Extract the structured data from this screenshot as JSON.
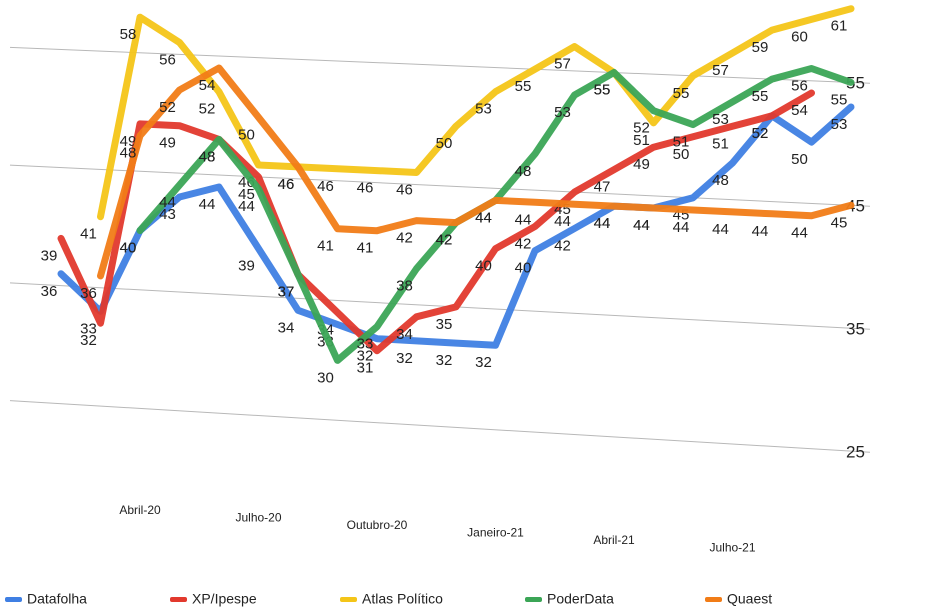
{
  "chart_data": {
    "type": "line",
    "categories": [
      null,
      null,
      "Abril-20",
      null,
      null,
      "Julho-20",
      null,
      null,
      "Outubro-20",
      null,
      null,
      "Janeiro-21",
      null,
      null,
      "Abril-21",
      null,
      null,
      "Julho-21",
      null,
      null,
      null
    ],
    "series": [
      {
        "name": "Datafolha",
        "color": "#3f7fe3",
        "values": [
          36,
          33,
          40,
          43,
          44,
          39,
          34,
          33,
          32,
          32,
          32,
          32,
          40,
          42,
          44,
          44,
          45,
          48,
          52,
          50,
          53
        ]
      },
      {
        "name": "XP/Ipespe",
        "color": "#e2392d",
        "values": [
          39,
          32,
          49,
          49,
          48,
          45,
          37,
          34,
          31,
          34,
          35,
          40,
          42,
          45,
          47,
          49,
          50,
          51,
          52,
          54,
          null
        ]
      },
      {
        "name": "Atlas Político",
        "color": "#f4c518",
        "values": [
          null,
          41,
          58,
          56,
          52,
          46,
          46,
          46,
          46,
          46,
          50,
          53,
          55,
          57,
          55,
          51,
          55,
          57,
          59,
          60,
          61
        ]
      },
      {
        "name": "PoderData",
        "color": "#3ba556",
        "values": [
          null,
          null,
          40,
          44,
          48,
          44,
          37,
          30,
          33,
          38,
          42,
          44,
          48,
          53,
          55,
          52,
          51,
          53,
          55,
          56,
          55
        ]
      },
      {
        "name": "Quaest",
        "color": "#f17c17",
        "values": [
          null,
          36,
          48,
          52,
          54,
          50,
          46,
          41,
          41,
          42,
          42,
          44,
          44,
          44,
          44,
          44,
          44,
          44,
          44,
          44,
          45
        ]
      }
    ],
    "ylim": [
      25,
      55
    ],
    "yticks": [
      25,
      35,
      45,
      55
    ],
    "grid": true,
    "legend": "bottom"
  }
}
